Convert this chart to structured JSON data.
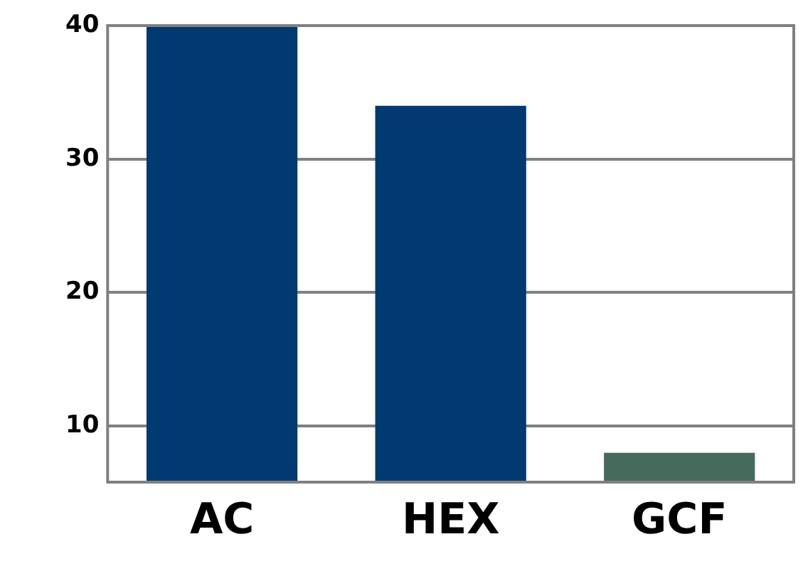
{
  "chart_data": {
    "type": "bar",
    "categories": [
      "AC",
      "HEX",
      "GCF"
    ],
    "values": [
      40,
      34,
      8
    ],
    "colors": [
      "#003a70",
      "#003a70",
      "#466b5c"
    ],
    "ylim": [
      5.8,
      40
    ],
    "yticks": [
      10,
      20,
      30,
      40
    ],
    "grid": "y"
  }
}
